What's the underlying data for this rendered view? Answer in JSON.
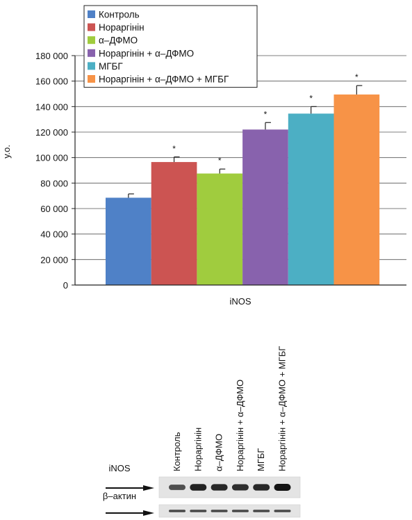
{
  "chart_data": {
    "type": "bar",
    "title": "",
    "xlabel": "iNOS",
    "ylabel": "у.о.",
    "ylim": [
      0,
      180000
    ],
    "yticks": [
      0,
      20000,
      40000,
      60000,
      80000,
      100000,
      120000,
      140000,
      160000,
      180000
    ],
    "ytick_labels": [
      "0",
      "20 000",
      "40 000",
      "60 000",
      "80 000",
      "100 000",
      "120 000",
      "140 000",
      "160 000",
      "180 000"
    ],
    "grid": true,
    "legend_position": "top-left",
    "series": [
      {
        "name": "Контроль",
        "value": 68500,
        "error": 3000,
        "significance": "",
        "color": "#4f81c7"
      },
      {
        "name": "Нораргінін",
        "value": 96500,
        "error": 4000,
        "significance": "*",
        "color": "#cc5452"
      },
      {
        "name": "α–ДФМО",
        "value": 87500,
        "error": 3500,
        "significance": "*",
        "color": "#a0cc3e"
      },
      {
        "name": "Нораргінін + α–ДФМО",
        "value": 122000,
        "error": 5500,
        "significance": "*",
        "color": "#8862ad"
      },
      {
        "name": "МГБГ",
        "value": 134500,
        "error": 5500,
        "significance": "*",
        "color": "#4cafc4"
      },
      {
        "name": "Нораргінін + α–ДФМО + МГБГ",
        "value": 149500,
        "error": 7000,
        "significance": "*",
        "color": "#f79347"
      }
    ]
  },
  "blot": {
    "lanes": [
      "Контроль",
      "Нораргінін",
      "α–ДФМО",
      "Нораргінін + α–ДФМО",
      "МГБГ",
      "Нораргінін + α–ДФМО + МГБГ"
    ],
    "rows": [
      {
        "label": "iNOS",
        "intensities": [
          0.55,
          0.9,
          0.85,
          0.8,
          0.85,
          1.0
        ]
      },
      {
        "label": "β–актин",
        "intensities": [
          0.6,
          0.6,
          0.6,
          0.6,
          0.6,
          0.6
        ]
      }
    ]
  }
}
